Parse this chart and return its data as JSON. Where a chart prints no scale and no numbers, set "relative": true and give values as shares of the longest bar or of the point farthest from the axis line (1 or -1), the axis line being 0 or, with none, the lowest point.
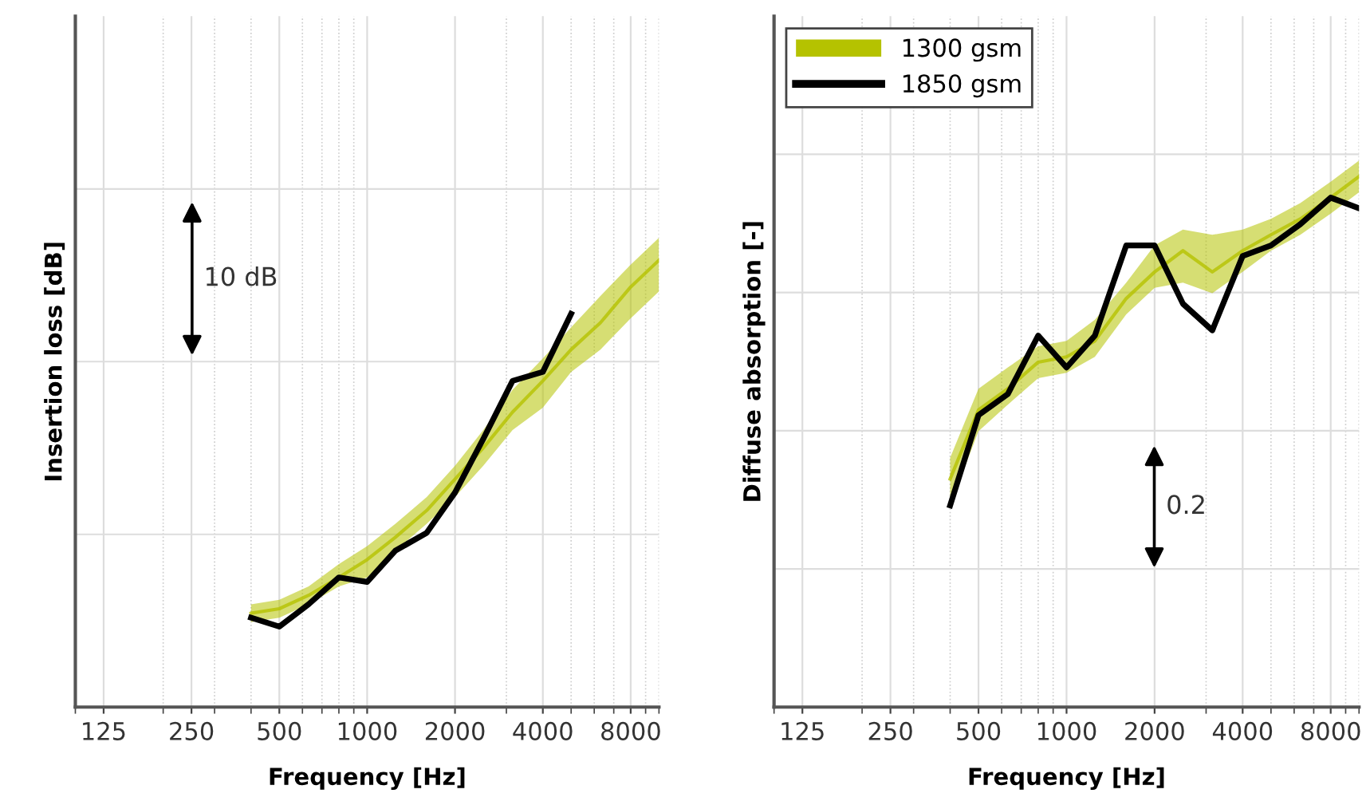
{
  "chart_data": [
    {
      "type": "line",
      "relative": true,
      "xlabel": "Frequency [Hz]",
      "ylabel": "Insertion loss [dB]",
      "log": "x",
      "xlim": [
        100,
        10000
      ],
      "xticks": [
        125,
        250,
        500,
        1000,
        2000,
        4000,
        8000
      ],
      "grid": true,
      "tick_labels": "x",
      "annotations": [
        "10 dB"
      ],
      "series": [
        {
          "color": "#b5c200",
          "x": [
            400,
            500,
            630,
            800,
            1000,
            1250,
            1600,
            2000,
            2500,
            3150,
            4000,
            5000,
            6300,
            8000,
            10000
          ],
          "values": [
            0.21,
            0.22,
            0.25,
            0.29,
            0.33,
            0.38,
            0.44,
            0.51,
            0.58,
            0.66,
            0.73,
            0.8,
            0.86,
            0.94,
            1.0
          ],
          "lower": [
            0.19,
            0.2,
            0.23,
            0.27,
            0.29,
            0.35,
            0.41,
            0.47,
            0.54,
            0.62,
            0.67,
            0.75,
            0.8,
            0.87,
            0.93
          ],
          "upper": [
            0.23,
            0.24,
            0.27,
            0.32,
            0.36,
            0.41,
            0.47,
            0.54,
            0.62,
            0.71,
            0.78,
            0.85,
            0.92,
            0.99,
            1.05
          ]
        },
        {
          "color": "#000000",
          "x": [
            400,
            500,
            630,
            800,
            1000,
            1250,
            1600,
            2000,
            2500,
            3150,
            4000,
            5000
          ],
          "values": [
            0.2,
            0.18,
            0.23,
            0.29,
            0.28,
            0.35,
            0.39,
            0.48,
            0.6,
            0.73,
            0.75,
            0.88
          ]
        }
      ]
    },
    {
      "type": "line",
      "relative": true,
      "xlabel": "Frequency [Hz]",
      "ylabel": "Diffuse absorption [-]",
      "log": "x",
      "xlim": [
        100,
        10000
      ],
      "xticks": [
        125,
        250,
        500,
        1000,
        2000,
        4000,
        8000
      ],
      "grid": true,
      "tick_labels": "x",
      "legend": "top left",
      "annotations": [
        "0.2"
      ],
      "series": [
        {
          "name": "1300 gsm",
          "color": "#b5c200",
          "x": [
            400,
            500,
            630,
            800,
            1000,
            1250,
            1600,
            2000,
            2500,
            3150,
            4000,
            5000,
            6300,
            8000,
            10000
          ],
          "values": [
            0.43,
            0.56,
            0.6,
            0.65,
            0.66,
            0.69,
            0.77,
            0.82,
            0.86,
            0.82,
            0.86,
            0.89,
            0.92,
            0.96,
            1.0
          ],
          "lower": [
            0.38,
            0.52,
            0.57,
            0.62,
            0.63,
            0.66,
            0.74,
            0.79,
            0.8,
            0.78,
            0.82,
            0.86,
            0.89,
            0.93,
            0.97
          ],
          "upper": [
            0.47,
            0.6,
            0.64,
            0.68,
            0.69,
            0.73,
            0.8,
            0.87,
            0.9,
            0.89,
            0.9,
            0.92,
            0.95,
            0.99,
            1.03
          ]
        },
        {
          "name": "1850 gsm",
          "color": "#000000",
          "x": [
            400,
            500,
            630,
            800,
            1000,
            1250,
            1600,
            2000,
            2500,
            3150,
            4000,
            5000,
            6300,
            8000,
            10000
          ],
          "values": [
            0.38,
            0.55,
            0.59,
            0.7,
            0.64,
            0.7,
            0.87,
            0.87,
            0.76,
            0.71,
            0.85,
            0.87,
            0.91,
            0.96,
            0.94
          ]
        }
      ]
    }
  ]
}
